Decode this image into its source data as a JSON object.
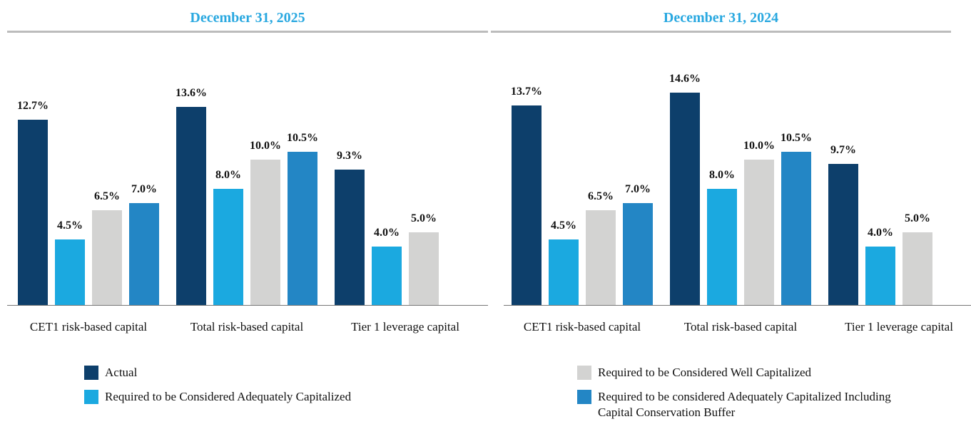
{
  "chart_data": [
    {
      "type": "bar",
      "title": "December 31, 2025",
      "categories": [
        "CET1 risk-based capital",
        "Total risk-based capital",
        "Tier 1 leverage capital"
      ],
      "ylim": [
        0,
        16
      ],
      "series": [
        {
          "name": "Actual",
          "color": "#0d3f6b",
          "values": [
            12.7,
            13.6,
            9.3
          ],
          "value_labels": [
            "12.7%",
            "13.6%",
            "9.3%"
          ]
        },
        {
          "name": "Required to be Considered Adequately Capitalized",
          "color": "#1ba9e0",
          "values": [
            4.5,
            8.0,
            4.0
          ],
          "value_labels": [
            "4.5%",
            "8.0%",
            "4.0%"
          ]
        },
        {
          "name": "Required to be Considered Well Capitalized",
          "color": "#d3d3d2",
          "values": [
            6.5,
            10.0,
            5.0
          ],
          "value_labels": [
            "6.5%",
            "10.0%",
            "5.0%"
          ]
        },
        {
          "name": "Required to be considered Adequately Capitalized Including Capital Conservation Buffer",
          "color": "#2386c5",
          "values": [
            7.0,
            10.5,
            null
          ],
          "value_labels": [
            "7.0%",
            "10.5%",
            null
          ]
        }
      ]
    },
    {
      "type": "bar",
      "title": "December 31, 2024",
      "categories": [
        "CET1 risk-based capital",
        "Total risk-based capital",
        "Tier 1 leverage capital"
      ],
      "ylim": [
        0,
        16
      ],
      "series": [
        {
          "color": "#0d3f6b",
          "values": [
            13.7,
            14.6,
            9.7
          ],
          "value_labels": [
            "13.7%",
            "14.6%",
            "9.7%"
          ]
        },
        {
          "color": "#1ba9e0",
          "values": [
            4.5,
            8.0,
            4.0
          ],
          "value_labels": [
            "4.5%",
            "8.0%",
            "4.0%"
          ]
        },
        {
          "color": "#d3d3d2",
          "values": [
            6.5,
            10.0,
            5.0
          ],
          "value_labels": [
            "6.5%",
            "10.0%",
            "5.0%"
          ]
        },
        {
          "color": "#2386c5",
          "values": [
            7.0,
            10.5,
            null
          ],
          "value_labels": [
            "7.0%",
            "10.5%",
            null
          ]
        }
      ]
    }
  ]
}
